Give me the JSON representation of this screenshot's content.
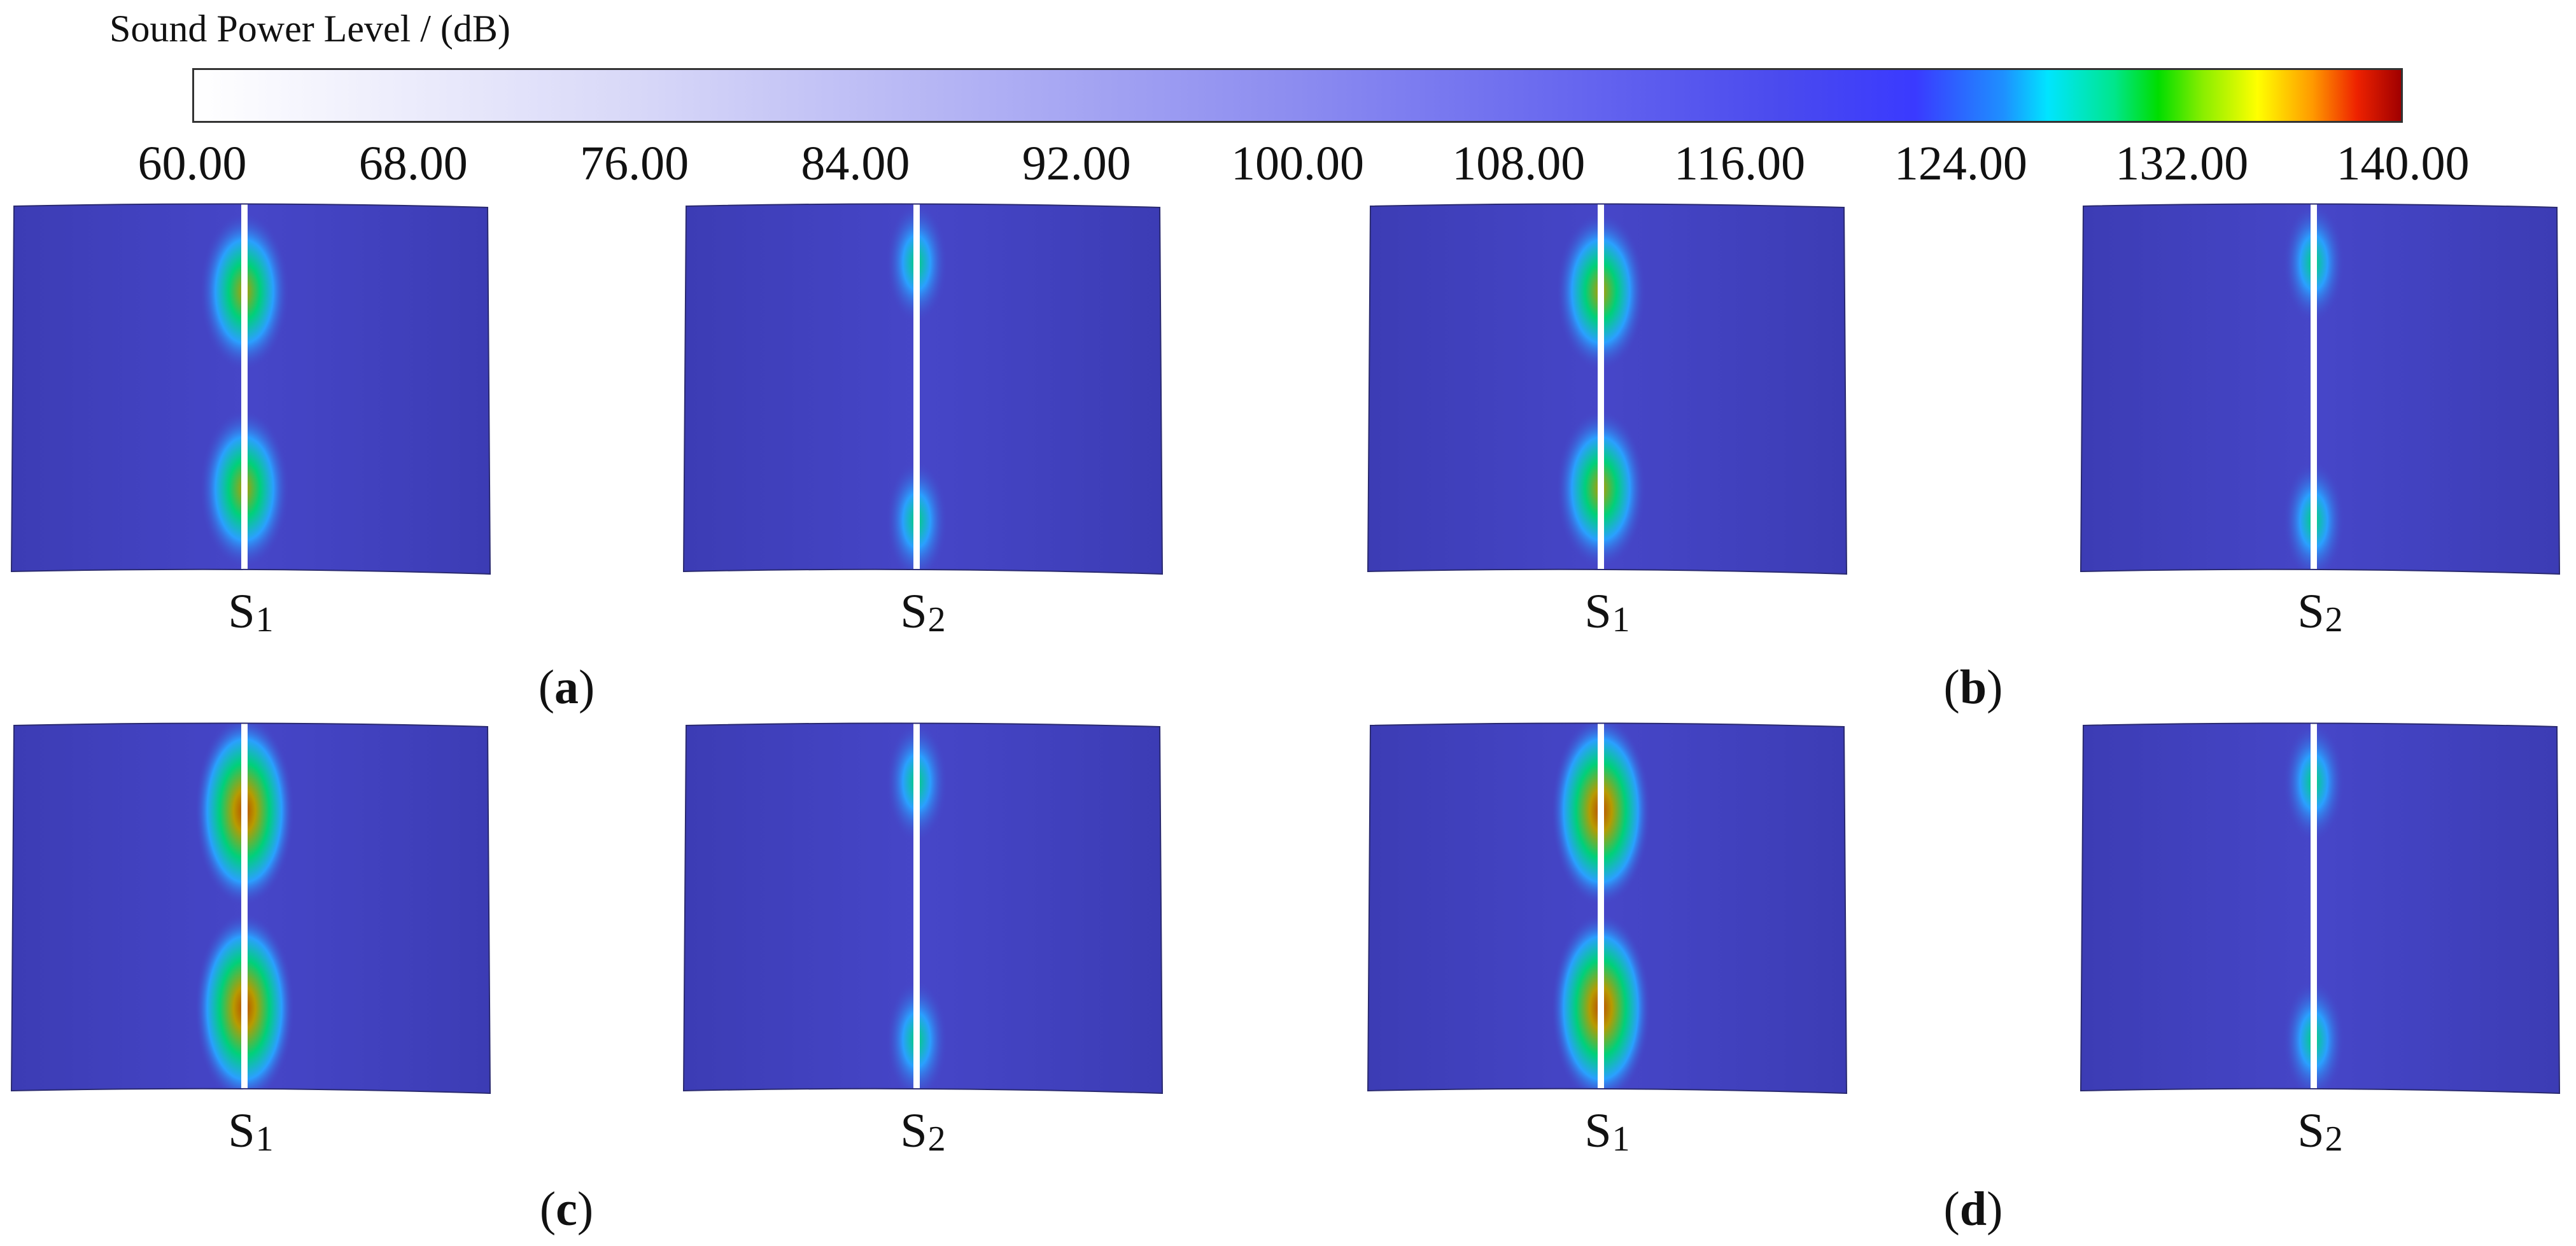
{
  "colorbar": {
    "title": "Sound Power Level / (dB)",
    "min": 60,
    "max": 140,
    "tick_labels": [
      "60.00",
      "68.00",
      "76.00",
      "84.00",
      "92.00",
      "100.00",
      "108.00",
      "116.00",
      "124.00",
      "132.00",
      "140.00"
    ],
    "colormap": [
      {
        "at": 0.0,
        "color": "#ffffff"
      },
      {
        "at": 0.2,
        "color": "#d8d8f8"
      },
      {
        "at": 0.5,
        "color": "#8c8cf0"
      },
      {
        "at": 0.72,
        "color": "#4a4aee"
      },
      {
        "at": 0.78,
        "color": "#3a3aff"
      },
      {
        "at": 0.82,
        "color": "#1e90ff"
      },
      {
        "at": 0.84,
        "color": "#00e5ff"
      },
      {
        "at": 0.87,
        "color": "#00e68c"
      },
      {
        "at": 0.89,
        "color": "#00dd00"
      },
      {
        "at": 0.91,
        "color": "#88ee00"
      },
      {
        "at": 0.935,
        "color": "#ffff00"
      },
      {
        "at": 0.96,
        "color": "#ff9900"
      },
      {
        "at": 0.98,
        "color": "#ee2200"
      },
      {
        "at": 1.0,
        "color": "#a00000"
      }
    ]
  },
  "panel_colors": {
    "background_field": "#4646c8",
    "edge_field": "#3c3cb4",
    "hotspot_rim": "#2aa0ff",
    "hotspot_mid": "#00d07a",
    "hotspot_core": "#b89a00",
    "hotspot_peak": "#b84a00",
    "slit": "#ffffff"
  },
  "subfigures": [
    {
      "label": "a",
      "panels": [
        {
          "surface": "S",
          "index": "1",
          "hotspot_level": "high"
        },
        {
          "surface": "S",
          "index": "2",
          "hotspot_level": "low"
        }
      ]
    },
    {
      "label": "b",
      "panels": [
        {
          "surface": "S",
          "index": "1",
          "hotspot_level": "high"
        },
        {
          "surface": "S",
          "index": "2",
          "hotspot_level": "low"
        }
      ]
    },
    {
      "label": "c",
      "panels": [
        {
          "surface": "S",
          "index": "1",
          "hotspot_level": "very-high"
        },
        {
          "surface": "S",
          "index": "2",
          "hotspot_level": "low"
        }
      ]
    },
    {
      "label": "d",
      "panels": [
        {
          "surface": "S",
          "index": "1",
          "hotspot_level": "very-high"
        },
        {
          "surface": "S",
          "index": "2",
          "hotspot_level": "low"
        }
      ]
    }
  ]
}
